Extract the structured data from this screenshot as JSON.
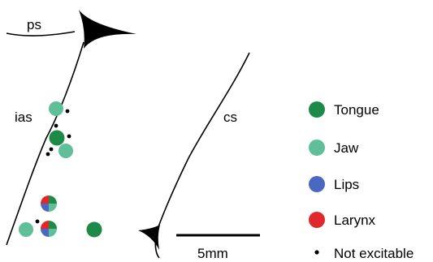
{
  "colors": {
    "tongue": "#1e8a48",
    "jaw": "#5ebf99",
    "lips": "#4a67c2",
    "larynx": "#e0282c",
    "not_excitable": "#000000",
    "sulcus_line": "#000000"
  },
  "labels": {
    "ps": "ps",
    "ias": "ias",
    "cs": "cs",
    "scale": "5mm"
  },
  "legend": {
    "items": [
      {
        "key": "tongue",
        "label": "Tongue",
        "marker": "filled-circle"
      },
      {
        "key": "jaw",
        "label": "Jaw",
        "marker": "filled-circle"
      },
      {
        "key": "lips",
        "label": "Lips",
        "marker": "filled-circle"
      },
      {
        "key": "larynx",
        "label": "Larynx",
        "marker": "filled-circle"
      },
      {
        "key": "not_excitable",
        "label": "Not excitable",
        "marker": "small-dot"
      }
    ]
  }
}
